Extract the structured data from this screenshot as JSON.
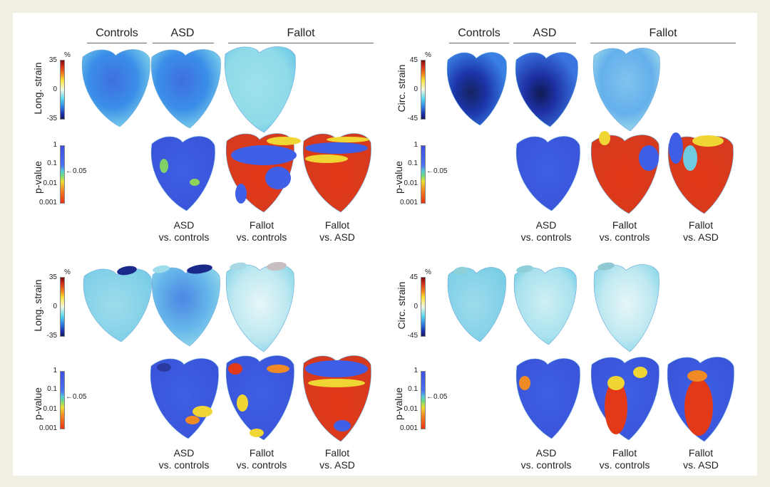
{
  "groups": {
    "controls": "Controls",
    "asd": "ASD",
    "fallot": "Fallot"
  },
  "axis": {
    "long_strain": "Long. strain",
    "circ_strain": "Circ. strain",
    "p_value": "p-value",
    "unit_percent": "%",
    "long_ticks": [
      "35",
      "0",
      "-35"
    ],
    "circ_ticks": [
      "45",
      "0",
      "-45"
    ],
    "p_ticks": [
      "1",
      "0.1",
      "0.01",
      "0.001"
    ],
    "p_threshold": "0.05"
  },
  "captions": {
    "asd_vs_controls": [
      "ASD",
      "vs. controls"
    ],
    "fallot_vs_controls": [
      "Fallot",
      "vs. controls"
    ],
    "fallot_vs_asd": [
      "Fallot",
      "vs. ASD"
    ]
  },
  "colors": {
    "background": "#f1efe3",
    "strain_light": "#8fdbe9",
    "strain_mid": "#3f8fe8",
    "strain_dark": "#1b34a8",
    "p_blue": "#3e5fe6",
    "p_red": "#e7421d",
    "p_yellow": "#efd634"
  }
}
